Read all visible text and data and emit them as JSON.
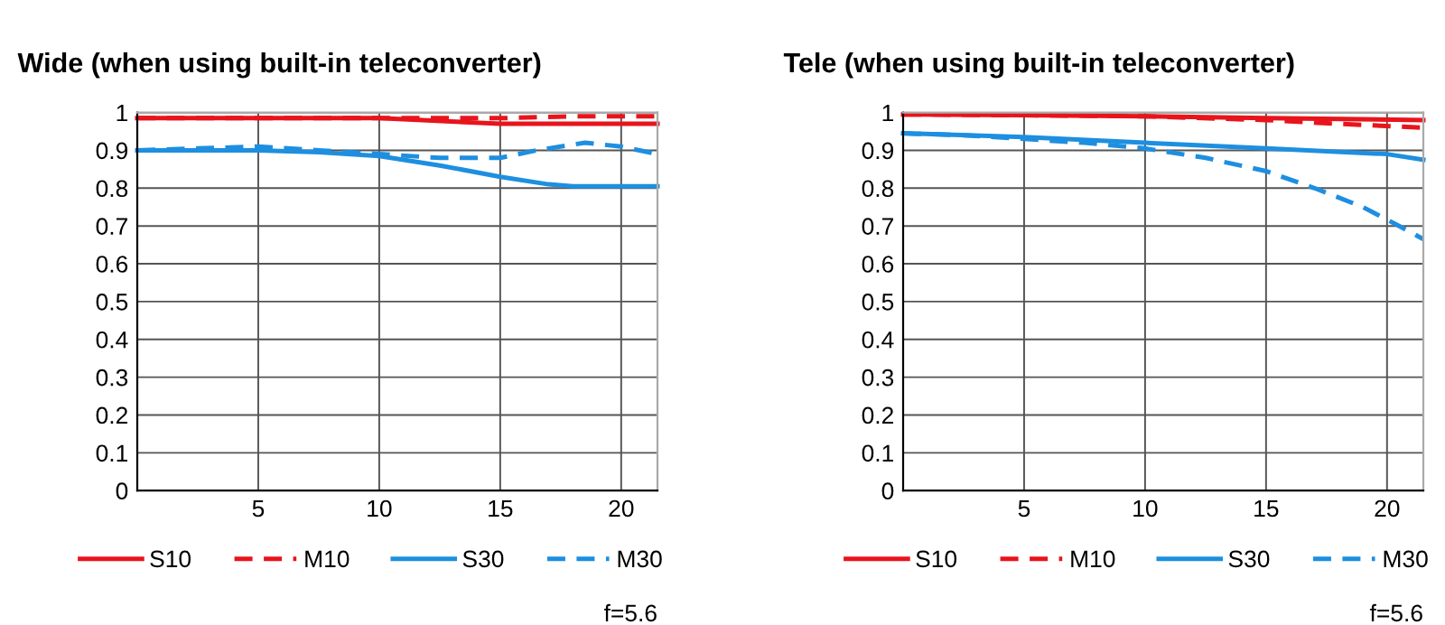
{
  "chart_data": [
    {
      "type": "line",
      "title": "Wide (when using built-in teleconverter)",
      "xlim": [
        0,
        21.5
      ],
      "ylim": [
        0,
        1
      ],
      "xticks": [
        5,
        10,
        15,
        20
      ],
      "yticks": [
        0,
        0.1,
        0.2,
        0.3,
        0.4,
        0.5,
        0.6,
        0.7,
        0.8,
        0.9,
        1
      ],
      "grid": true,
      "legend": "bottom",
      "marker": "none",
      "annotations": [
        "f=5.6"
      ],
      "series": [
        {
          "name": "S10",
          "color": "#e8141c",
          "line_style": "solid",
          "x": [
            0,
            5,
            10,
            15,
            18,
            21.5
          ],
          "values": [
            0.985,
            0.985,
            0.985,
            0.97,
            0.97,
            0.97
          ]
        },
        {
          "name": "M10",
          "color": "#e8141c",
          "line_style": "dashed",
          "x": [
            0,
            5,
            10,
            15,
            18,
            21.5
          ],
          "values": [
            0.985,
            0.985,
            0.985,
            0.985,
            0.99,
            0.99
          ]
        },
        {
          "name": "S30",
          "color": "#1e8fe0",
          "line_style": "solid",
          "x": [
            0,
            2.5,
            5,
            7.5,
            10,
            12.5,
            15,
            17,
            18,
            20,
            21.5
          ],
          "values": [
            0.9,
            0.9,
            0.9,
            0.895,
            0.885,
            0.86,
            0.83,
            0.81,
            0.805,
            0.805,
            0.805
          ]
        },
        {
          "name": "M30",
          "color": "#1e8fe0",
          "line_style": "dashed",
          "x": [
            0,
            2.5,
            5,
            7.5,
            10,
            12.5,
            15,
            16.5,
            18.5,
            20,
            21.5
          ],
          "values": [
            0.9,
            0.905,
            0.91,
            0.9,
            0.89,
            0.88,
            0.88,
            0.9,
            0.92,
            0.91,
            0.89
          ]
        }
      ]
    },
    {
      "type": "line",
      "title": "Tele (when using built-in teleconverter)",
      "xlim": [
        0,
        21.5
      ],
      "ylim": [
        0,
        1
      ],
      "xticks": [
        5,
        10,
        15,
        20
      ],
      "yticks": [
        0,
        0.1,
        0.2,
        0.3,
        0.4,
        0.5,
        0.6,
        0.7,
        0.8,
        0.9,
        1
      ],
      "grid": true,
      "legend": "bottom",
      "marker": "none",
      "annotations": [
        "f=5.6"
      ],
      "series": [
        {
          "name": "S10",
          "color": "#e8141c",
          "line_style": "solid",
          "x": [
            0,
            5,
            10,
            15,
            21.5
          ],
          "values": [
            0.995,
            0.993,
            0.99,
            0.985,
            0.98
          ]
        },
        {
          "name": "M10",
          "color": "#e8141c",
          "line_style": "dashed",
          "x": [
            0,
            5,
            10,
            15,
            18,
            21.5
          ],
          "values": [
            0.995,
            0.993,
            0.99,
            0.98,
            0.97,
            0.96
          ]
        },
        {
          "name": "S30",
          "color": "#1e8fe0",
          "line_style": "solid",
          "x": [
            0,
            5,
            10,
            15,
            20,
            21.5
          ],
          "values": [
            0.945,
            0.935,
            0.92,
            0.905,
            0.89,
            0.875
          ]
        },
        {
          "name": "M30",
          "color": "#1e8fe0",
          "line_style": "dashed",
          "x": [
            0,
            2.5,
            5,
            7.5,
            10,
            12.5,
            15,
            17,
            19,
            20.5,
            21.5
          ],
          "values": [
            0.945,
            0.94,
            0.93,
            0.92,
            0.905,
            0.88,
            0.845,
            0.8,
            0.75,
            0.7,
            0.665
          ]
        }
      ]
    }
  ]
}
